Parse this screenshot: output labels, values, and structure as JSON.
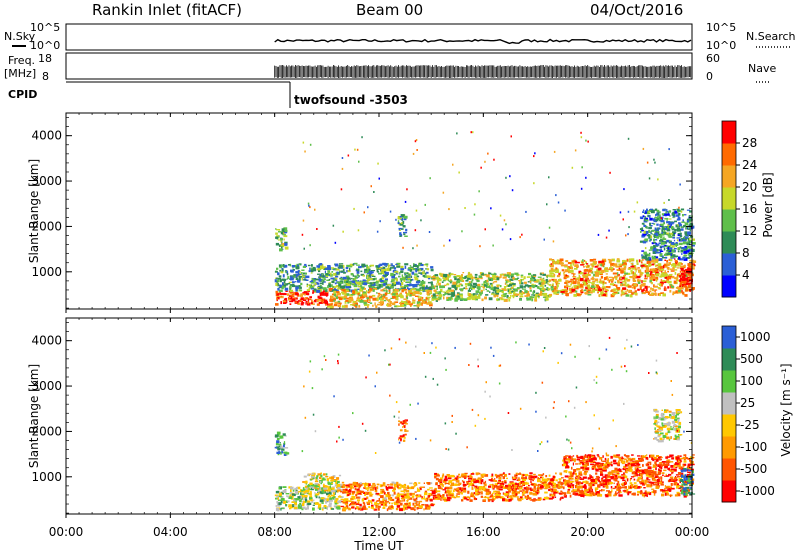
{
  "header": {
    "station": "Rankin Inlet (fitACF)",
    "beam": "Beam 00",
    "date": "04/Oct/2016"
  },
  "params": {
    "nsky_label": "N.Sky",
    "nsky_ticks": [
      "10^5",
      "10^0"
    ],
    "nsearch_label": "N.Search",
    "nsearch_ticks": [
      "10^5",
      "10^0"
    ],
    "freq_label": "Freq.",
    "freq_unit": "[MHz]",
    "freq_ticks": [
      "18",
      "8"
    ],
    "nave_label": "Nave",
    "nave_ticks": [
      "60",
      "0"
    ],
    "cpid_label": "CPID",
    "cpid_value": "twofsound -3503",
    "data_start_hour": 8
  },
  "x_axis": {
    "label": "Time UT",
    "ticks": [
      "00:00",
      "04:00",
      "08:00",
      "12:00",
      "16:00",
      "20:00",
      "00:00"
    ],
    "range_hours": [
      0,
      24
    ]
  },
  "colors": {
    "power": [
      "#0000ff",
      "#2b5fd6",
      "#2e8b57",
      "#5fbf4a",
      "#c7d82a",
      "#f5a623",
      "#ff6a00",
      "#ff0000"
    ],
    "velocity": [
      "#ff0000",
      "#ff5500",
      "#ff9a00",
      "#ffc800",
      "#c0c0c0",
      "#58c63e",
      "#2e8b57",
      "#2b5fd6"
    ]
  },
  "chart_data": [
    {
      "type": "heatmap",
      "quantity": "Power",
      "ylabel": "Slant Range [km]",
      "yticks": [
        "1000",
        "2000",
        "3000",
        "4000"
      ],
      "ylim": [
        180,
        4500
      ],
      "xlim": [
        0,
        24
      ],
      "colorbar": {
        "label": "Power [dB]",
        "ticks": [
          "4",
          "8",
          "12",
          "16",
          "20",
          "24",
          "28"
        ],
        "range": [
          0,
          32
        ]
      },
      "regions": [
        {
          "x": [
            8.0,
            8.4
          ],
          "y": [
            1500,
            2000
          ],
          "level": 0.45
        },
        {
          "x": [
            8.0,
            10.0
          ],
          "y": [
            300,
            600
          ],
          "level": 0.9
        },
        {
          "x": [
            8.0,
            14.0
          ],
          "y": [
            600,
            1200
          ],
          "level": 0.35
        },
        {
          "x": [
            10.0,
            14.0
          ],
          "y": [
            250,
            650
          ],
          "level": 0.65
        },
        {
          "x": [
            12.7,
            13.0
          ],
          "y": [
            1800,
            2300
          ],
          "level": 0.35
        },
        {
          "x": [
            14.0,
            18.5
          ],
          "y": [
            400,
            1000
          ],
          "level": 0.5
        },
        {
          "x": [
            18.5,
            24.0
          ],
          "y": [
            500,
            1300
          ],
          "level": 0.7
        },
        {
          "x": [
            22.0,
            24.0
          ],
          "y": [
            1300,
            2400
          ],
          "level": 0.3
        },
        {
          "x": [
            23.5,
            24.0
          ],
          "y": [
            600,
            1200
          ],
          "level": 0.95
        }
      ]
    },
    {
      "type": "heatmap",
      "quantity": "Velocity",
      "ylabel": "Slant Range [km]",
      "yticks": [
        "1000",
        "2000",
        "3000",
        "4000"
      ],
      "ylim": [
        180,
        4500
      ],
      "xlim": [
        0,
        24
      ],
      "colorbar": {
        "label": "Velocity [m s⁻¹]",
        "ticks": [
          "-1000",
          "-500",
          "-100",
          "-25",
          "25",
          "100",
          "500",
          "1000"
        ]
      },
      "regions": [
        {
          "x": [
            8.0,
            8.4
          ],
          "y": [
            1500,
            2000
          ],
          "level": 0.75
        },
        {
          "x": [
            8.0,
            10.5
          ],
          "y": [
            300,
            800
          ],
          "level": 0.6
        },
        {
          "x": [
            9.0,
            10.5
          ],
          "y": [
            700,
            1100
          ],
          "level": 0.5
        },
        {
          "x": [
            10.5,
            14.0
          ],
          "y": [
            300,
            900
          ],
          "level": 0.3
        },
        {
          "x": [
            12.7,
            13.0
          ],
          "y": [
            1800,
            2300
          ],
          "level": 0.2
        },
        {
          "x": [
            14.0,
            19.0
          ],
          "y": [
            500,
            1100
          ],
          "level": 0.25
        },
        {
          "x": [
            19.0,
            24.0
          ],
          "y": [
            600,
            1500
          ],
          "level": 0.2
        },
        {
          "x": [
            22.5,
            23.5
          ],
          "y": [
            1800,
            2500
          ],
          "level": 0.5
        },
        {
          "x": [
            23.5,
            24.0
          ],
          "y": [
            600,
            1200
          ],
          "level": 0.85
        }
      ]
    }
  ]
}
